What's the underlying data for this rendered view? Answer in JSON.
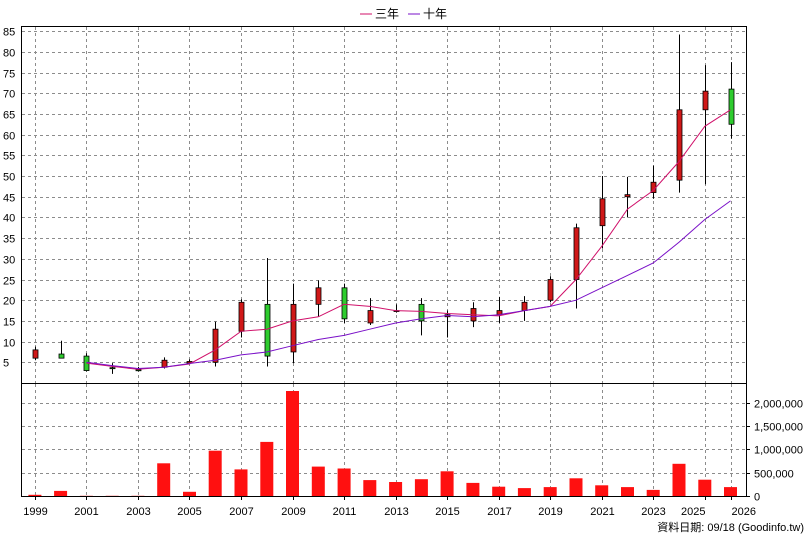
{
  "legend": [
    {
      "label": "三年",
      "color": "#d0106a"
    },
    {
      "label": "十年",
      "color": "#7a10c8"
    }
  ],
  "footer": "資料日期: 09/18  (Goodinfo.tw)",
  "colors": {
    "up": "#d01818",
    "down": "#2ecc2e",
    "volume": "#ff1010",
    "grid": "#8c8c8c"
  },
  "chart_data": [
    {
      "type": "candlestick",
      "title": "",
      "y_ticks": [
        5,
        10,
        15,
        20,
        25,
        30,
        35,
        40,
        45,
        50,
        55,
        60,
        65,
        70,
        75,
        80,
        85
      ],
      "ylim": [
        0,
        86
      ],
      "x_ticks": [
        "1999",
        "2001",
        "2003",
        "2005",
        "2007",
        "2009",
        "2011",
        "2013",
        "2015",
        "2017",
        "2019",
        "2021",
        "2023",
        "2025",
        "2026"
      ],
      "grid": true,
      "years": [
        "1999",
        "2000",
        "2001",
        "2002",
        "2003",
        "2004",
        "2005",
        "2006",
        "2007",
        "2008",
        "2009",
        "2010",
        "2011",
        "2012",
        "2013",
        "2014",
        "2015",
        "2016",
        "2017",
        "2018",
        "2019",
        "2020",
        "2021",
        "2022",
        "2023",
        "2024",
        "2025",
        "2026"
      ],
      "open": [
        6.0,
        7.0,
        6.5,
        3.7,
        3.2,
        3.8,
        4.8,
        5.0,
        12.5,
        19.0,
        7.5,
        19.0,
        23.0,
        14.5,
        17.5,
        19.0,
        16.0,
        15.0,
        16.5,
        17.5,
        20.0,
        25.0,
        38.0,
        45.0,
        46.0,
        49.0,
        66.0,
        71.0
      ],
      "high": [
        8.8,
        10.2,
        7.2,
        4.8,
        3.9,
        6.2,
        5.7,
        14.8,
        20.2,
        30.2,
        24.0,
        24.8,
        24.0,
        20.5,
        19.0,
        20.5,
        17.5,
        19.5,
        20.8,
        21.0,
        25.8,
        38.5,
        50.0,
        49.8,
        52.5,
        84.2,
        76.8,
        77.5
      ],
      "low": [
        5.5,
        6.0,
        2.8,
        2.2,
        2.8,
        3.5,
        4.5,
        4.0,
        11.0,
        4.0,
        4.8,
        16.0,
        14.5,
        14.0,
        17.0,
        11.5,
        11.0,
        13.5,
        14.5,
        15.0,
        19.5,
        18.0,
        32.5,
        40.0,
        44.5,
        46.0,
        48.0,
        59.0
      ],
      "close": [
        8.0,
        6.0,
        3.0,
        3.5,
        3.0,
        5.5,
        5.2,
        13.0,
        19.5,
        6.5,
        19.0,
        23.0,
        15.5,
        17.5,
        17.5,
        15.0,
        16.5,
        18.0,
        17.5,
        19.5,
        25.0,
        37.5,
        44.5,
        45.5,
        48.5,
        66.0,
        70.5,
        62.5
      ],
      "series": [
        {
          "name": "三年",
          "x": [
            "2001",
            "2002",
            "2003",
            "2004",
            "2005",
            "2006",
            "2007",
            "2008",
            "2009",
            "2010",
            "2011",
            "2012",
            "2013",
            "2014",
            "2015",
            "2016",
            "2017",
            "2018",
            "2019",
            "2020",
            "2021",
            "2022",
            "2023",
            "2024",
            "2025",
            "2026"
          ],
          "values": [
            4.8,
            4.0,
            3.3,
            3.8,
            4.6,
            8.0,
            12.5,
            13.0,
            15.0,
            16.0,
            19.0,
            18.5,
            17.5,
            17.3,
            16.8,
            16.5,
            16.2,
            17.5,
            18.5,
            25.0,
            33.0,
            42.0,
            46.5,
            53.5,
            62.0,
            66.0
          ]
        },
        {
          "name": "十年",
          "x": [
            "2001",
            "2002",
            "2003",
            "2004",
            "2005",
            "2006",
            "2007",
            "2008",
            "2009",
            "2010",
            "2011",
            "2012",
            "2013",
            "2014",
            "2015",
            "2016",
            "2017",
            "2018",
            "2019",
            "2020",
            "2021",
            "2022",
            "2023",
            "2024",
            "2025",
            "2026"
          ],
          "values": [
            5.0,
            4.2,
            3.5,
            3.8,
            4.7,
            5.5,
            6.8,
            7.5,
            9.0,
            10.5,
            11.5,
            13.0,
            14.5,
            15.5,
            16.3,
            16.0,
            16.5,
            17.5,
            18.5,
            20.0,
            23.0,
            26.0,
            29.0,
            34.0,
            39.5,
            44.0
          ]
        }
      ]
    },
    {
      "type": "bar",
      "title": "",
      "categories": [
        "1999",
        "2000",
        "2001",
        "2002",
        "2003",
        "2004",
        "2005",
        "2006",
        "2007",
        "2008",
        "2009",
        "2010",
        "2011",
        "2012",
        "2013",
        "2014",
        "2015",
        "2016",
        "2017",
        "2018",
        "2019",
        "2020",
        "2021",
        "2022",
        "2023",
        "2024",
        "2025",
        "2026"
      ],
      "values": [
        25000,
        110000,
        5000,
        5000,
        5000,
        700000,
        90000,
        970000,
        570000,
        1160000,
        2250000,
        630000,
        590000,
        340000,
        300000,
        360000,
        530000,
        280000,
        200000,
        170000,
        190000,
        380000,
        230000,
        190000,
        130000,
        690000,
        350000,
        190000
      ],
      "y_ticks": [
        "0",
        "500,000",
        "1,000,000",
        "1,500,000",
        "2,000,000"
      ],
      "ylim": [
        0,
        2400000
      ]
    }
  ]
}
